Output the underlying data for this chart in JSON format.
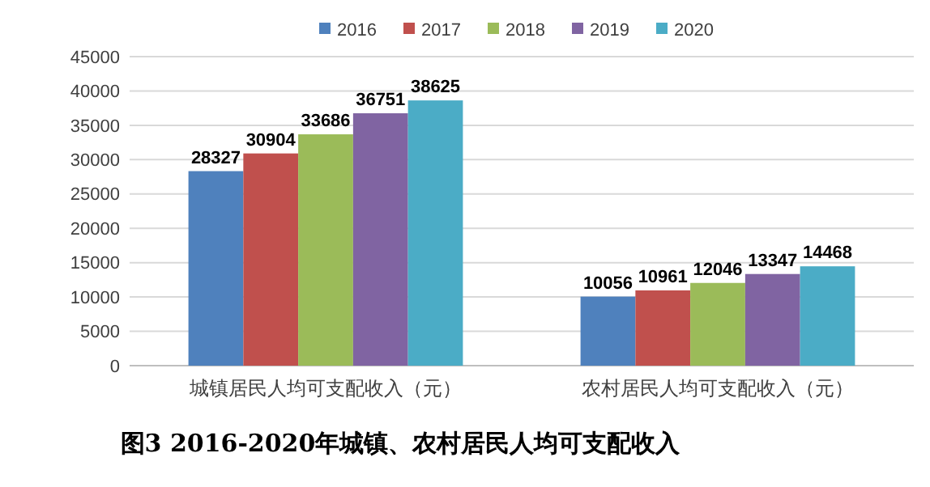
{
  "chart_data": {
    "type": "bar",
    "title": "图3 2016-2020年城镇、农村居民人均可支配收入",
    "categories": [
      "城镇居民人均可支配收入（元）",
      "农村居民人均可支配收入（元）"
    ],
    "series": [
      {
        "name": "2016",
        "color": "#4f81bd",
        "values": [
          28327,
          10056
        ]
      },
      {
        "name": "2017",
        "color": "#c0504d",
        "values": [
          30904,
          10961
        ]
      },
      {
        "name": "2018",
        "color": "#9bbb59",
        "values": [
          33686,
          12046
        ]
      },
      {
        "name": "2019",
        "color": "#8064a2",
        "values": [
          36751,
          13347
        ]
      },
      {
        "name": "2020",
        "color": "#4bacc6",
        "values": [
          38625,
          14468
        ]
      }
    ],
    "ylim": [
      0,
      45000
    ],
    "yticks": [
      0,
      5000,
      10000,
      15000,
      20000,
      25000,
      30000,
      35000,
      40000,
      45000
    ],
    "grid": "y",
    "legend": "top",
    "data_labels": true
  }
}
